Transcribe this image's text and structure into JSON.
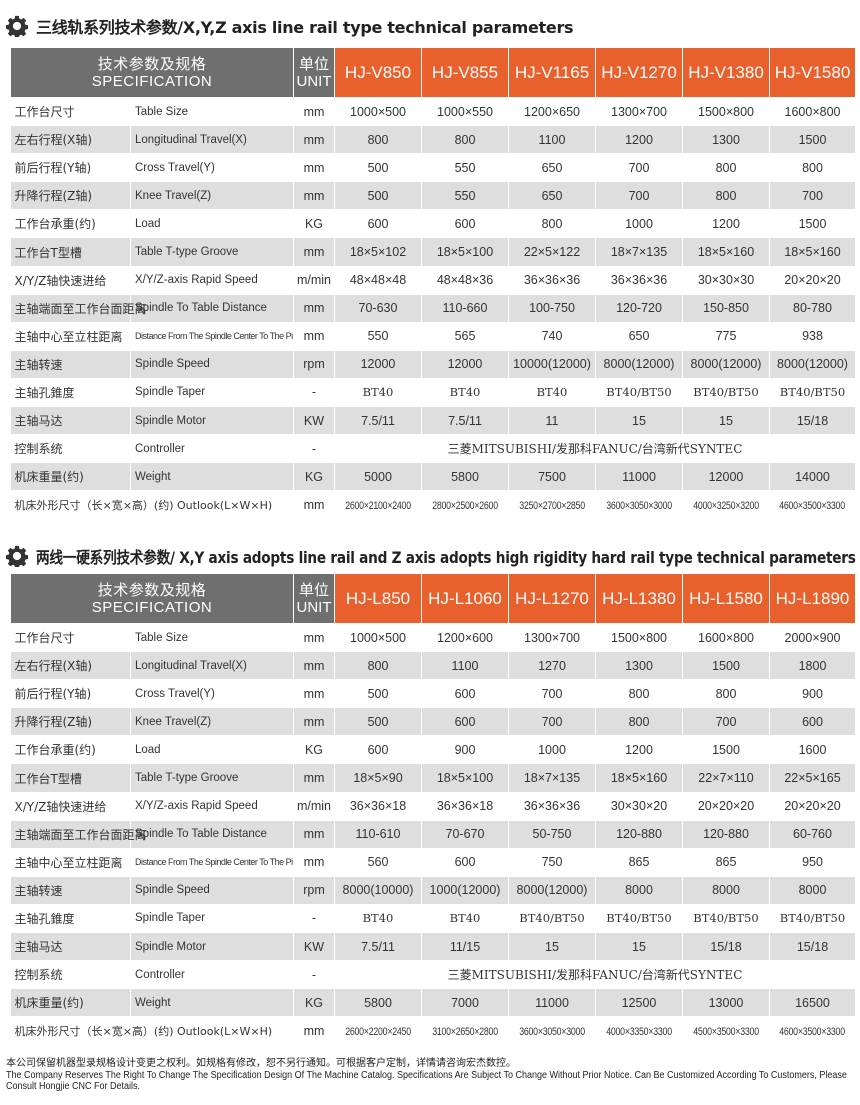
{
  "colors": {
    "header_gray": "#6f6f6f",
    "model_orange": "#e8602c",
    "row_alt": "#dedede"
  },
  "sections": [
    {
      "title": "三线轨系列技术参数/X,Y,Z axis line rail type technical parameters",
      "icon": "gear-icon",
      "header": {
        "spec_cn": "技术参数及规格",
        "spec_en": "SPECIFICATION",
        "unit_cn": "单位",
        "unit_en": "UNIT",
        "models": [
          "HJ-V850",
          "HJ-V855",
          "HJ-V1165",
          "HJ-V1270",
          "HJ-V1380",
          "HJ-V1580"
        ]
      },
      "rows": [
        {
          "cn": "工作台尺寸",
          "en": "Table Size",
          "unit": "mm",
          "values": [
            "1000×500",
            "1000×550",
            "1200×650",
            "1300×700",
            "1500×800",
            "1600×800"
          ]
        },
        {
          "cn": "左右行程(X轴)",
          "en": "Longitudinal Travel(X)",
          "unit": "mm",
          "values": [
            "800",
            "800",
            "1100",
            "1200",
            "1300",
            "1500"
          ]
        },
        {
          "cn": "前后行程(Y轴)",
          "en": "Cross Travel(Y)",
          "unit": "mm",
          "values": [
            "500",
            "550",
            "650",
            "700",
            "800",
            "800"
          ]
        },
        {
          "cn": "升降行程(Z轴)",
          "en": "Knee Travel(Z)",
          "unit": "mm",
          "values": [
            "500",
            "550",
            "650",
            "700",
            "800",
            "700"
          ]
        },
        {
          "cn": "工作台承重(约)",
          "en": "Load",
          "unit": "KG",
          "values": [
            "600",
            "600",
            "800",
            "1000",
            "1200",
            "1500"
          ]
        },
        {
          "cn": "工作台T型槽",
          "en": "Table T-type Groove",
          "unit": "mm",
          "values": [
            "18×5×102",
            "18×5×100",
            "22×5×122",
            "18×7×135",
            "18×5×160",
            "18×5×160"
          ]
        },
        {
          "cn": "X/Y/Z轴快速进给",
          "en": "X/Y/Z-axis Rapid Speed",
          "unit": "m/min",
          "values": [
            "48×48×48",
            "48×48×36",
            "36×36×36",
            "36×36×36",
            "30×30×30",
            "20×20×20"
          ]
        },
        {
          "cn": "主轴端面至工作台面距离",
          "en": "Spindle To Table Distance",
          "unit": "mm",
          "values": [
            "70-630",
            "110-660",
            "100-750",
            "120-720",
            "150-850",
            "80-780"
          ]
        },
        {
          "cn": "主轴中心至立柱距离",
          "en": "Distance From The Spindle Center To The Pillar",
          "unit": "mm",
          "values": [
            "550",
            "565",
            "740",
            "650",
            "775",
            "938"
          ]
        },
        {
          "cn": "主轴转速",
          "en": "Spindle Speed",
          "unit": "rpm",
          "values": [
            "12000",
            "12000",
            "10000(12000)",
            "8000(12000)",
            "8000(12000)",
            "8000(12000)"
          ]
        },
        {
          "cn": "主轴孔錐度",
          "en": "Spindle Taper",
          "unit": "-",
          "values": [
            "BT40",
            "BT40",
            "BT40",
            "BT40/BT50",
            "BT40/BT50",
            "BT40/BT50"
          ]
        },
        {
          "cn": "主轴马达",
          "en": "Spindle Motor",
          "unit": "KW",
          "values": [
            "7.5/11",
            "7.5/11",
            "11",
            "15",
            "15",
            "15/18"
          ]
        },
        {
          "cn": "控制系统",
          "en": "Controller",
          "unit": "-",
          "merged": "三菱MITSUBISHI/发那科FANUC/台湾新代SYNTEC"
        },
        {
          "cn": "机床重量(约)",
          "en": "Weight",
          "unit": "KG",
          "values": [
            "5000",
            "5800",
            "7500",
            "11000",
            "12000",
            "14000"
          ]
        },
        {
          "cn": "机床外形尺寸（长×宽×高）(约) Outlook(L×W×H)",
          "unit": "mm",
          "values": [
            "2600×2100×2400",
            "2800×2500×2600",
            "3250×2700×2850",
            "3600×3050×3000",
            "4000×3250×3200",
            "4600×3500×3300"
          ]
        }
      ]
    },
    {
      "title": "两线一硬系列技术参数/ X,Y axis adopts line rail and Z axis adopts high rigidity hard rail type technical parameters",
      "icon": "gear-icon",
      "header": {
        "spec_cn": "技术参数及规格",
        "spec_en": "SPECIFICATION",
        "unit_cn": "单位",
        "unit_en": "UNIT",
        "models": [
          "HJ-L850",
          "HJ-L1060",
          "HJ-L1270",
          "HJ-L1380",
          "HJ-L1580",
          "HJ-L1890"
        ]
      },
      "rows": [
        {
          "cn": "工作台尺寸",
          "en": "Table Size",
          "unit": "mm",
          "values": [
            "1000×500",
            "1200×600",
            "1300×700",
            "1500×800",
            "1600×800",
            "2000×900"
          ]
        },
        {
          "cn": "左右行程(X轴)",
          "en": "Longitudinal Travel(X)",
          "unit": "mm",
          "values": [
            "800",
            "1100",
            "1270",
            "1300",
            "1500",
            "1800"
          ]
        },
        {
          "cn": "前后行程(Y轴)",
          "en": "Cross Travel(Y)",
          "unit": "mm",
          "values": [
            "500",
            "600",
            "700",
            "800",
            "800",
            "900"
          ]
        },
        {
          "cn": "升降行程(Z轴)",
          "en": "Knee Travel(Z)",
          "unit": "mm",
          "values": [
            "500",
            "600",
            "700",
            "800",
            "700",
            "600"
          ]
        },
        {
          "cn": "工作台承重(约)",
          "en": "Load",
          "unit": "KG",
          "values": [
            "600",
            "900",
            "1000",
            "1200",
            "1500",
            "1600"
          ]
        },
        {
          "cn": "工作台T型槽",
          "en": "Table T-type Groove",
          "unit": "mm",
          "values": [
            "18×5×90",
            "18×5×100",
            "18×7×135",
            "18×5×160",
            "22×7×110",
            "22×5×165"
          ]
        },
        {
          "cn": "X/Y/Z轴快速进给",
          "en": "X/Y/Z-axis Rapid Speed",
          "unit": "m/min",
          "values": [
            "36×36×18",
            "36×36×18",
            "36×36×36",
            "30×30×20",
            "20×20×20",
            "20×20×20"
          ]
        },
        {
          "cn": "主轴端面至工作台面距离",
          "en": "Spindle To Table Distance",
          "unit": "mm",
          "values": [
            "110-610",
            "70-670",
            "50-750",
            "120-880",
            "120-880",
            "60-760"
          ]
        },
        {
          "cn": "主轴中心至立柱距离",
          "en": "Distance From The Spindle Center To The Pillar",
          "unit": "mm",
          "values": [
            "560",
            "600",
            "750",
            "865",
            "865",
            "950"
          ]
        },
        {
          "cn": "主轴转速",
          "en": "Spindle Speed",
          "unit": "rpm",
          "values": [
            "8000(10000)",
            "1000(12000)",
            "8000(12000)",
            "8000",
            "8000",
            "8000"
          ]
        },
        {
          "cn": "主轴孔錐度",
          "en": "Spindle Taper",
          "unit": "-",
          "values": [
            "BT40",
            "BT40",
            "BT40/BT50",
            "BT40/BT50",
            "BT40/BT50",
            "BT40/BT50"
          ]
        },
        {
          "cn": "主轴马达",
          "en": "Spindle Motor",
          "unit": "KW",
          "values": [
            "7.5/11",
            "11/15",
            "15",
            "15",
            "15/18",
            "15/18"
          ]
        },
        {
          "cn": "控制系统",
          "en": "Controller",
          "unit": "-",
          "merged": "三菱MITSUBISHI/发那科FANUC/台湾新代SYNTEC"
        },
        {
          "cn": "机床重量(约)",
          "en": "Weight",
          "unit": "KG",
          "values": [
            "5800",
            "7000",
            "11000",
            "12500",
            "13000",
            "16500"
          ]
        },
        {
          "cn": "机床外形尺寸（长×宽×高）(约) Outlook(L×W×H)",
          "unit": "mm",
          "values": [
            "2600×2200×2450",
            "3100×2650×2800",
            "3600×3050×3000",
            "4000×3350×3300",
            "4500×3500×3300",
            "4600×3500×3300"
          ]
        }
      ]
    }
  ],
  "footer": {
    "cn": "本公司保留机器型录规格设计变更之权利。如规格有修改，恕不另行通知。可根据客户定制，详情请咨询宏杰数控。",
    "en": "The Company Reserves The Right To Change The Specification Design Of The Machine Catalog. Specifications Are Subject To Change Without Prior Notice. Can Be Customized According To Customers, Please Consult Hongjie CNC For Details."
  }
}
